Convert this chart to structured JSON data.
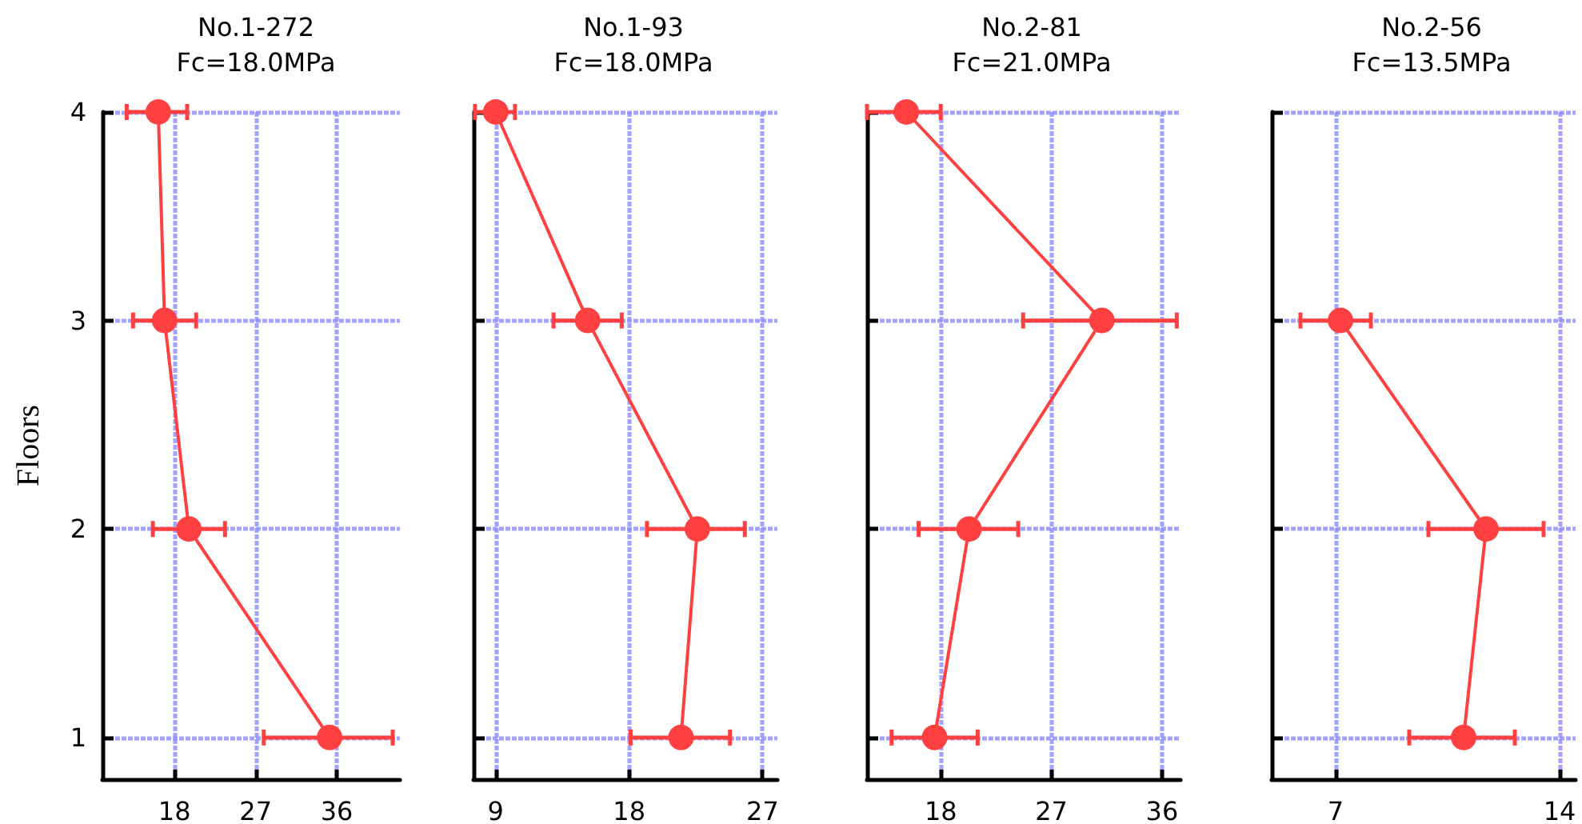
{
  "chart_data": [
    {
      "type": "line",
      "title": "No.1-272",
      "subtitle": "Fc=18.0MPa",
      "ylabel": "Floors",
      "color": "#ff4040",
      "marker": "circle",
      "grid": true,
      "x": [
        16.2,
        16.9,
        19.6,
        35.2
      ],
      "values": [
        4,
        3,
        2,
        1
      ],
      "xerrors": [
        [
          12.7,
          19.4
        ],
        [
          13.4,
          20.4
        ],
        [
          15.6,
          23.6
        ],
        [
          27.9,
          42.2
        ]
      ],
      "xlim": [
        10,
        43
      ],
      "xticks": [
        18,
        27,
        36
      ],
      "ylim": [
        0.8,
        4
      ],
      "yticks": [
        1,
        2,
        3,
        4
      ]
    },
    {
      "type": "line",
      "title": "No.1-93",
      "subtitle": "Fc=18.0MPa",
      "color": "#ff4040",
      "marker": "circle",
      "grid": true,
      "tick_labels": "x",
      "x": [
        9.0,
        15.2,
        22.6,
        21.5
      ],
      "values": [
        4,
        3,
        2,
        1
      ],
      "xerrors": [
        [
          7.6,
          10.3
        ],
        [
          12.9,
          17.5
        ],
        [
          19.2,
          25.8
        ],
        [
          18.1,
          24.8
        ]
      ],
      "xlim": [
        7.5,
        28
      ],
      "xticks": [
        9,
        18,
        27
      ],
      "ylim": [
        0.8,
        4
      ],
      "yticks": [
        1,
        2,
        3,
        4
      ]
    },
    {
      "type": "line",
      "title": "No.2-81",
      "subtitle": "Fc=21.0MPa",
      "color": "#ff4040",
      "marker": "circle",
      "grid": true,
      "tick_labels": "x",
      "x": [
        15.2,
        31.1,
        20.3,
        17.5
      ],
      "values": [
        4,
        3,
        2,
        1
      ],
      "xerrors": [
        [
          12.0,
          18.0
        ],
        [
          24.7,
          37.2
        ],
        [
          16.2,
          24.3
        ],
        [
          14.0,
          21.0
        ]
      ],
      "xlim": [
        12,
        37.5
      ],
      "xticks": [
        18,
        27,
        36
      ],
      "ylim": [
        0.8,
        4
      ],
      "yticks": [
        1,
        2,
        3,
        4
      ]
    },
    {
      "type": "line",
      "title": "No.2-56",
      "subtitle": "Fc=13.5MPa",
      "color": "#ff4040",
      "marker": "circle",
      "grid": true,
      "tick_labels": "x",
      "x": [
        7.15,
        11.7,
        11.0
      ],
      "values": [
        3,
        2,
        1
      ],
      "xerrors": [
        [
          5.9,
          8.1
        ],
        [
          9.9,
          13.5
        ],
        [
          9.3,
          12.6
        ]
      ],
      "xlim": [
        5,
        14.5
      ],
      "xticks": [
        7,
        14
      ],
      "ylim": [
        0.8,
        4
      ],
      "yticks": [
        1,
        2,
        3,
        4
      ]
    }
  ]
}
